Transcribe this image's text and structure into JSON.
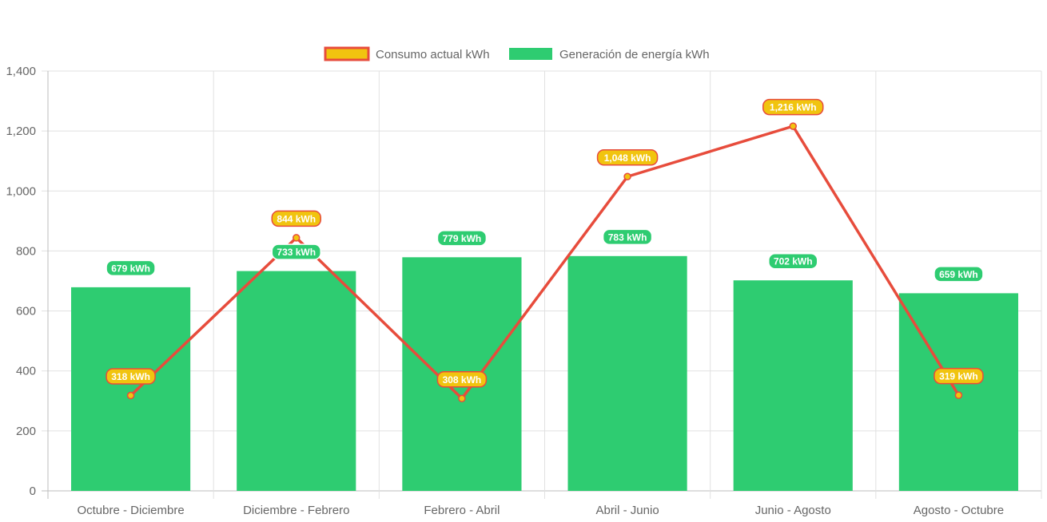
{
  "chart_data": {
    "type": "bar",
    "categories": [
      "Octubre - Diciembre",
      "Diciembre - Febrero",
      "Febrero - Abril",
      "Abril - Junio",
      "Junio - Agosto",
      "Agosto - Octubre"
    ],
    "series": [
      {
        "name": "Consumo actual kWh",
        "type": "line",
        "values": [
          318,
          844,
          308,
          1048,
          1216,
          319
        ],
        "labels": [
          "318 kWh",
          "844 kWh",
          "308 kWh",
          "1,048 kWh",
          "1,216 kWh",
          "319 kWh"
        ],
        "color": "#e74c3c",
        "fill": "#f1c40f"
      },
      {
        "name": "Generación de energía kWh",
        "type": "bar",
        "values": [
          679,
          733,
          779,
          783,
          702,
          659
        ],
        "labels": [
          "679 kWh",
          "733 kWh",
          "779 kWh",
          "783 kWh",
          "702 kWh",
          "659 kWh"
        ],
        "color": "#2ecc71"
      }
    ],
    "ylim": [
      0,
      1400
    ],
    "yticks": [
      "0",
      "200",
      "400",
      "600",
      "800",
      "1,000",
      "1,200",
      "1,400"
    ],
    "grid": true,
    "legend": "top-center"
  }
}
